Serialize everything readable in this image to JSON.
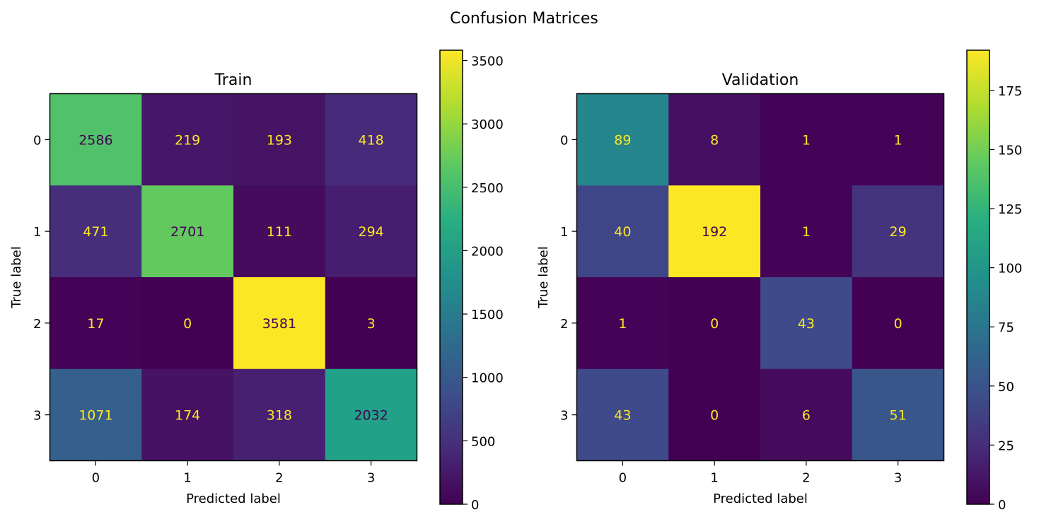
{
  "suptitle": "Confusion Matrices",
  "colormap": "viridis",
  "chart_data": [
    {
      "type": "heatmap",
      "title": "Train",
      "xlabel": "Predicted label",
      "ylabel": "True label",
      "x_categories": [
        "0",
        "1",
        "2",
        "3"
      ],
      "y_categories": [
        "0",
        "1",
        "2",
        "3"
      ],
      "matrix": [
        [
          2586,
          219,
          193,
          418
        ],
        [
          471,
          2701,
          111,
          294
        ],
        [
          17,
          0,
          3581,
          3
        ],
        [
          1071,
          174,
          318,
          2032
        ]
      ],
      "colorbar": {
        "range": [
          0,
          3581
        ],
        "ticks": [
          0,
          500,
          1000,
          1500,
          2000,
          2500,
          3000,
          3500
        ]
      }
    },
    {
      "type": "heatmap",
      "title": "Validation",
      "xlabel": "Predicted label",
      "ylabel": "True label",
      "x_categories": [
        "0",
        "1",
        "2",
        "3"
      ],
      "y_categories": [
        "0",
        "1",
        "2",
        "3"
      ],
      "matrix": [
        [
          89,
          8,
          1,
          1
        ],
        [
          40,
          192,
          1,
          29
        ],
        [
          1,
          0,
          43,
          0
        ],
        [
          43,
          0,
          6,
          51
        ]
      ],
      "colorbar": {
        "range": [
          0,
          192
        ],
        "ticks": [
          0,
          25,
          50,
          75,
          100,
          125,
          150,
          175
        ]
      }
    }
  ]
}
